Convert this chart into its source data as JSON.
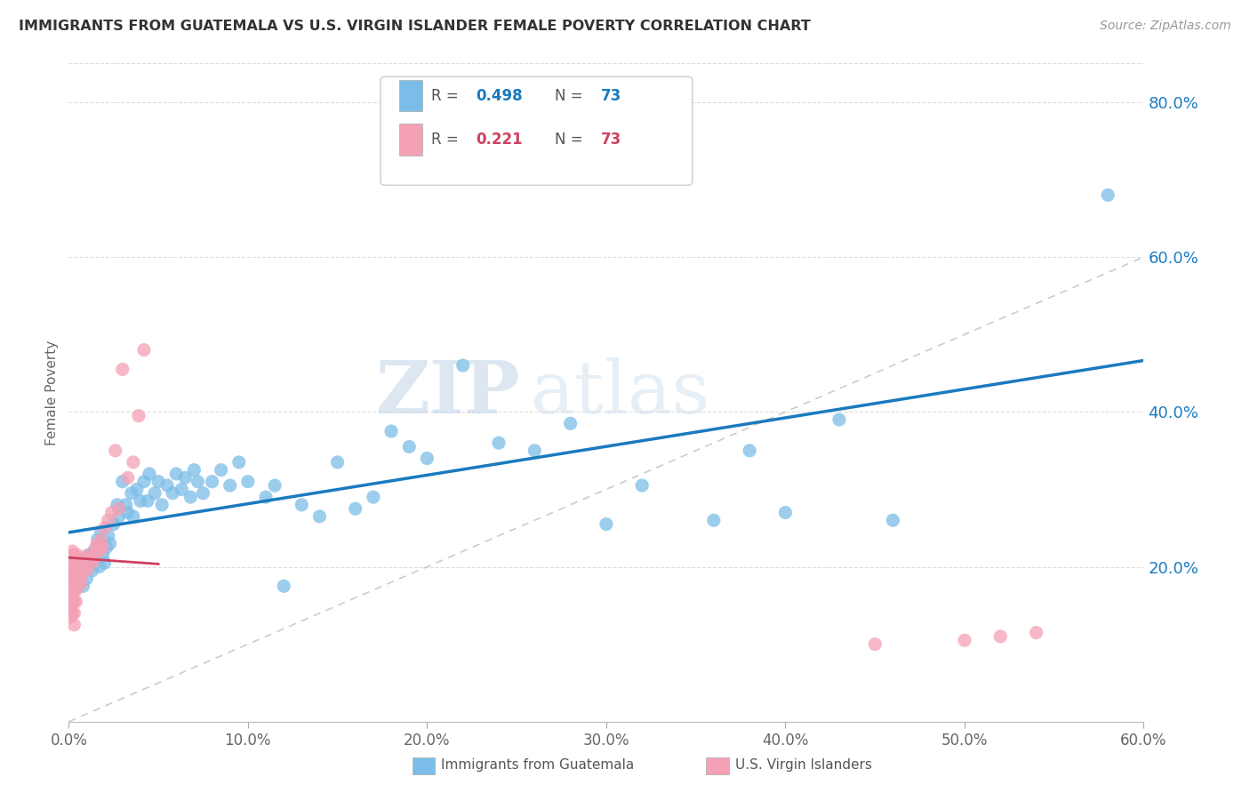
{
  "title": "IMMIGRANTS FROM GUATEMALA VS U.S. VIRGIN ISLANDER FEMALE POVERTY CORRELATION CHART",
  "source": "Source: ZipAtlas.com",
  "ylabel": "Female Poverty",
  "xlim": [
    0.0,
    0.6
  ],
  "ylim": [
    0.0,
    0.85
  ],
  "yticks": [
    0.2,
    0.4,
    0.6,
    0.8
  ],
  "xticks": [
    0.0,
    0.1,
    0.2,
    0.3,
    0.4,
    0.5,
    0.6
  ],
  "color_blue": "#7bbde8",
  "color_pink": "#f4a0b5",
  "color_trend_blue": "#1a7bbf",
  "color_trend_pink": "#d04060",
  "color_diag": "#cccccc",
  "watermark_zip": "ZIP",
  "watermark_atlas": "atlas",
  "blue_x": [
    0.003,
    0.005,
    0.006,
    0.007,
    0.008,
    0.009,
    0.01,
    0.011,
    0.012,
    0.013,
    0.014,
    0.015,
    0.016,
    0.017,
    0.018,
    0.019,
    0.02,
    0.021,
    0.022,
    0.023,
    0.025,
    0.027,
    0.028,
    0.03,
    0.032,
    0.033,
    0.035,
    0.036,
    0.038,
    0.04,
    0.042,
    0.044,
    0.045,
    0.048,
    0.05,
    0.052,
    0.055,
    0.058,
    0.06,
    0.063,
    0.065,
    0.068,
    0.07,
    0.072,
    0.075,
    0.08,
    0.085,
    0.09,
    0.095,
    0.1,
    0.11,
    0.115,
    0.12,
    0.13,
    0.14,
    0.15,
    0.16,
    0.17,
    0.18,
    0.19,
    0.2,
    0.22,
    0.24,
    0.26,
    0.28,
    0.3,
    0.32,
    0.36,
    0.38,
    0.4,
    0.43,
    0.46,
    0.58
  ],
  "blue_y": [
    0.185,
    0.18,
    0.195,
    0.2,
    0.175,
    0.21,
    0.185,
    0.215,
    0.205,
    0.195,
    0.22,
    0.21,
    0.235,
    0.2,
    0.245,
    0.215,
    0.205,
    0.225,
    0.24,
    0.23,
    0.255,
    0.28,
    0.265,
    0.31,
    0.28,
    0.27,
    0.295,
    0.265,
    0.3,
    0.285,
    0.31,
    0.285,
    0.32,
    0.295,
    0.31,
    0.28,
    0.305,
    0.295,
    0.32,
    0.3,
    0.315,
    0.29,
    0.325,
    0.31,
    0.295,
    0.31,
    0.325,
    0.305,
    0.335,
    0.31,
    0.29,
    0.305,
    0.175,
    0.28,
    0.265,
    0.335,
    0.275,
    0.29,
    0.375,
    0.355,
    0.34,
    0.46,
    0.36,
    0.35,
    0.385,
    0.255,
    0.305,
    0.26,
    0.35,
    0.27,
    0.39,
    0.26,
    0.68
  ],
  "pink_x": [
    0.001,
    0.001,
    0.001,
    0.001,
    0.001,
    0.001,
    0.001,
    0.001,
    0.001,
    0.001,
    0.001,
    0.002,
    0.002,
    0.002,
    0.002,
    0.002,
    0.002,
    0.002,
    0.002,
    0.002,
    0.002,
    0.002,
    0.003,
    0.003,
    0.003,
    0.003,
    0.003,
    0.003,
    0.003,
    0.003,
    0.004,
    0.004,
    0.004,
    0.004,
    0.004,
    0.005,
    0.005,
    0.005,
    0.005,
    0.006,
    0.006,
    0.006,
    0.007,
    0.007,
    0.007,
    0.008,
    0.008,
    0.009,
    0.01,
    0.01,
    0.011,
    0.012,
    0.013,
    0.014,
    0.015,
    0.016,
    0.017,
    0.018,
    0.019,
    0.02,
    0.022,
    0.024,
    0.026,
    0.028,
    0.03,
    0.033,
    0.036,
    0.039,
    0.042,
    0.45,
    0.5,
    0.52,
    0.54
  ],
  "pink_y": [
    0.19,
    0.175,
    0.205,
    0.16,
    0.145,
    0.2,
    0.155,
    0.17,
    0.135,
    0.185,
    0.21,
    0.2,
    0.185,
    0.17,
    0.155,
    0.21,
    0.195,
    0.165,
    0.215,
    0.18,
    0.22,
    0.14,
    0.195,
    0.205,
    0.185,
    0.17,
    0.155,
    0.14,
    0.125,
    0.215,
    0.2,
    0.185,
    0.17,
    0.21,
    0.155,
    0.2,
    0.215,
    0.19,
    0.175,
    0.21,
    0.195,
    0.18,
    0.21,
    0.195,
    0.18,
    0.21,
    0.195,
    0.205,
    0.21,
    0.195,
    0.215,
    0.21,
    0.205,
    0.21,
    0.225,
    0.23,
    0.22,
    0.235,
    0.225,
    0.25,
    0.26,
    0.27,
    0.35,
    0.275,
    0.455,
    0.315,
    0.335,
    0.395,
    0.48,
    0.1,
    0.105,
    0.11,
    0.115
  ]
}
